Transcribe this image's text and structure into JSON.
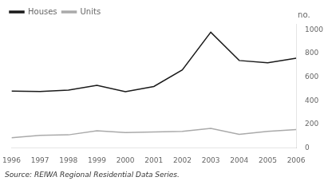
{
  "chart_data": {
    "type": "line",
    "x": [
      1996,
      1997,
      1998,
      1999,
      2000,
      2001,
      2002,
      2003,
      2004,
      2005,
      2006
    ],
    "xlim": [
      1996,
      2006
    ],
    "xticks": [
      1996,
      1997,
      1998,
      1999,
      2000,
      2001,
      2002,
      2003,
      2004,
      2005,
      2006
    ],
    "series": [
      {
        "name": "Houses",
        "color": "#1a1a1a",
        "values": [
          480,
          478,
          490,
          530,
          475,
          520,
          660,
          980,
          740,
          720,
          760
        ]
      },
      {
        "name": "Units",
        "color": "#aaaaaa",
        "values": [
          85,
          105,
          110,
          145,
          130,
          135,
          140,
          165,
          115,
          140,
          155
        ]
      }
    ],
    "ylim": [
      0,
      1050
    ],
    "yticks": [
      0,
      200,
      400,
      600,
      800,
      1000
    ],
    "ylabel": "no.",
    "annotation": "Source: REIWA Regional Residential Data Series.",
    "legend": "upper left",
    "grid": false
  }
}
